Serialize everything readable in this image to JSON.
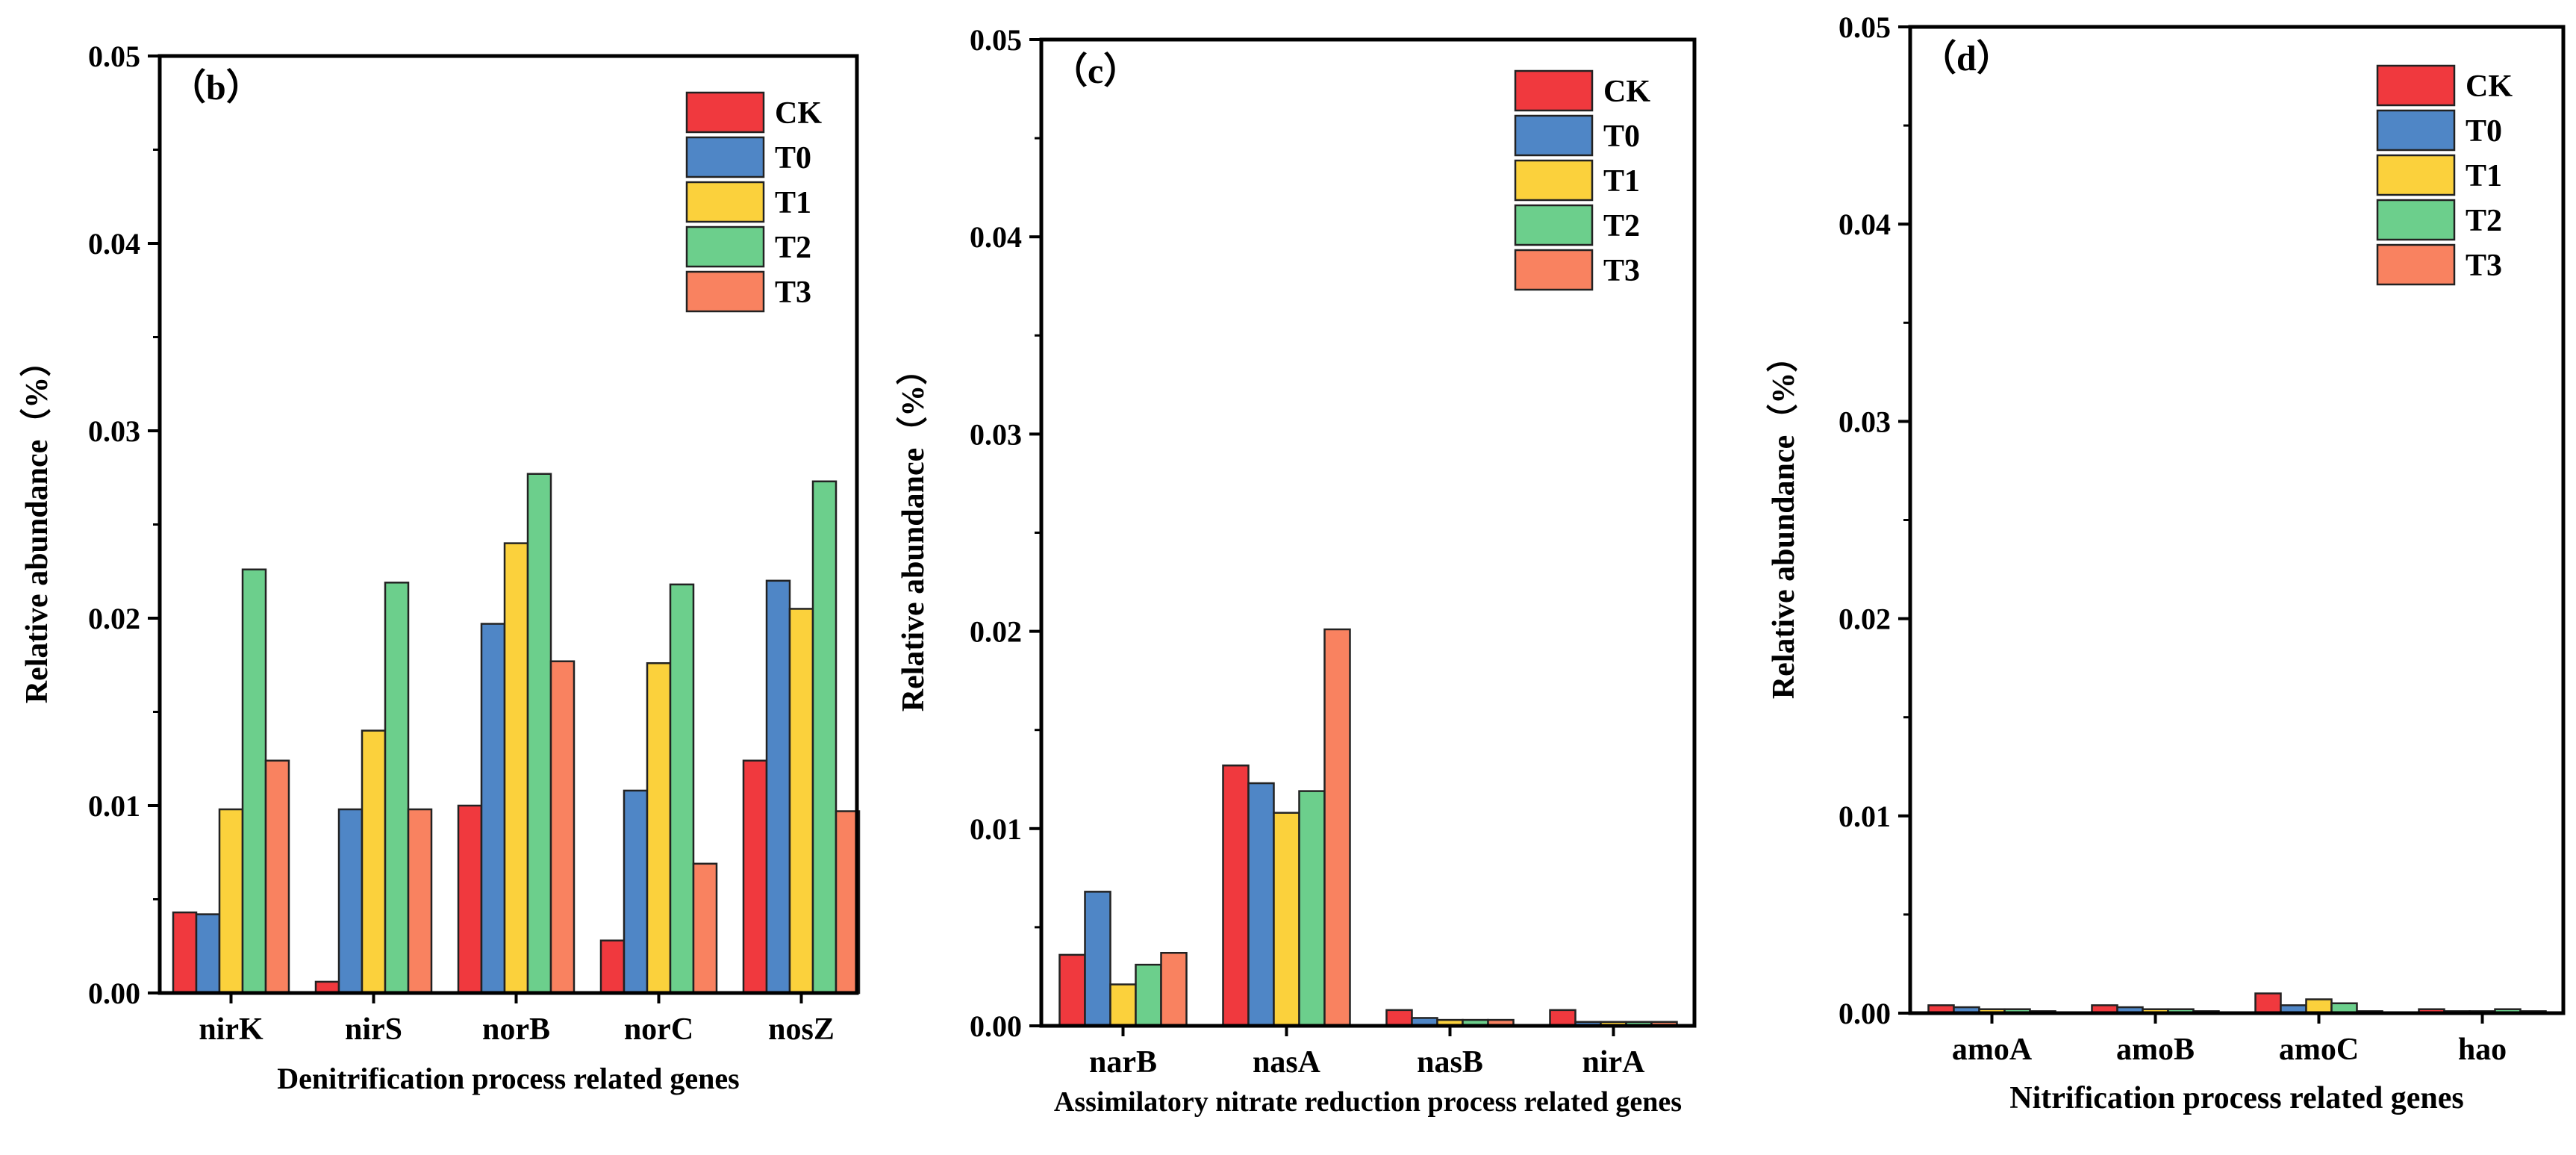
{
  "colors": {
    "CK": "#f0393e",
    "T0": "#4f86c6",
    "T1": "#fbd13c",
    "T2": "#6ccf8c",
    "T3": "#f98260"
  },
  "chart_data": [
    {
      "type": "bar",
      "panel_label": "（b）",
      "xlabel": "Denitrification process related genes",
      "ylabel": "Relative abundance（%）",
      "ylim": [
        0,
        0.05
      ],
      "yticks": [
        "0.00",
        "0.01",
        "0.02",
        "0.03",
        "0.04",
        "0.05"
      ],
      "categories": [
        "nirK",
        "nirS",
        "norB",
        "norC",
        "nosZ"
      ],
      "legend": [
        "CK",
        "T0",
        "T1",
        "T2",
        "T3"
      ],
      "series": [
        {
          "name": "CK",
          "values": [
            0.0043,
            0.0006,
            0.01,
            0.0028,
            0.0124
          ]
        },
        {
          "name": "T0",
          "values": [
            0.0042,
            0.0098,
            0.0197,
            0.0108,
            0.022
          ]
        },
        {
          "name": "T1",
          "values": [
            0.0098,
            0.014,
            0.024,
            0.0176,
            0.0205
          ]
        },
        {
          "name": "T2",
          "values": [
            0.0226,
            0.0219,
            0.0277,
            0.0218,
            0.0273
          ]
        },
        {
          "name": "T3",
          "values": [
            0.0124,
            0.0098,
            0.0177,
            0.0069,
            0.0097
          ]
        }
      ]
    },
    {
      "type": "bar",
      "panel_label": "（c）",
      "xlabel": "Assimilatory nitrate reduction process related genes",
      "ylabel": "Relative abundance（%）",
      "ylim": [
        0,
        0.05
      ],
      "yticks": [
        "0.00",
        "0.01",
        "0.02",
        "0.03",
        "0.04",
        "0.05"
      ],
      "categories": [
        "narB",
        "nasA",
        "nasB",
        "nirA"
      ],
      "legend": [
        "CK",
        "T0",
        "T1",
        "T2",
        "T3"
      ],
      "series": [
        {
          "name": "CK",
          "values": [
            0.0036,
            0.0132,
            0.0008,
            0.0008
          ]
        },
        {
          "name": "T0",
          "values": [
            0.0068,
            0.0123,
            0.0004,
            0.0002
          ]
        },
        {
          "name": "T1",
          "values": [
            0.0021,
            0.0108,
            0.0003,
            0.0002
          ]
        },
        {
          "name": "T2",
          "values": [
            0.0031,
            0.0119,
            0.0003,
            0.0002
          ]
        },
        {
          "name": "T3",
          "values": [
            0.0037,
            0.0201,
            0.0003,
            0.0002
          ]
        }
      ]
    },
    {
      "type": "bar",
      "panel_label": "（d）",
      "xlabel": "Nitrification process related genes",
      "ylabel": "Relative abundance（%）",
      "ylim": [
        0,
        0.05
      ],
      "yticks": [
        "0.00",
        "0.01",
        "0.02",
        "0.03",
        "0.04",
        "0.05"
      ],
      "categories": [
        "amoA",
        "amoB",
        "amoC",
        "hao"
      ],
      "legend": [
        "CK",
        "T0",
        "T1",
        "T2",
        "T3"
      ],
      "series": [
        {
          "name": "CK",
          "values": [
            0.0004,
            0.0004,
            0.001,
            0.0002
          ]
        },
        {
          "name": "T0",
          "values": [
            0.0003,
            0.0003,
            0.0004,
            0.0001
          ]
        },
        {
          "name": "T1",
          "values": [
            0.0002,
            0.0002,
            0.0007,
            0.0001
          ]
        },
        {
          "name": "T2",
          "values": [
            0.0002,
            0.0002,
            0.0005,
            0.0002
          ]
        },
        {
          "name": "T3",
          "values": [
            0.0001,
            0.0001,
            0.0001,
            0.0001
          ]
        }
      ]
    }
  ]
}
